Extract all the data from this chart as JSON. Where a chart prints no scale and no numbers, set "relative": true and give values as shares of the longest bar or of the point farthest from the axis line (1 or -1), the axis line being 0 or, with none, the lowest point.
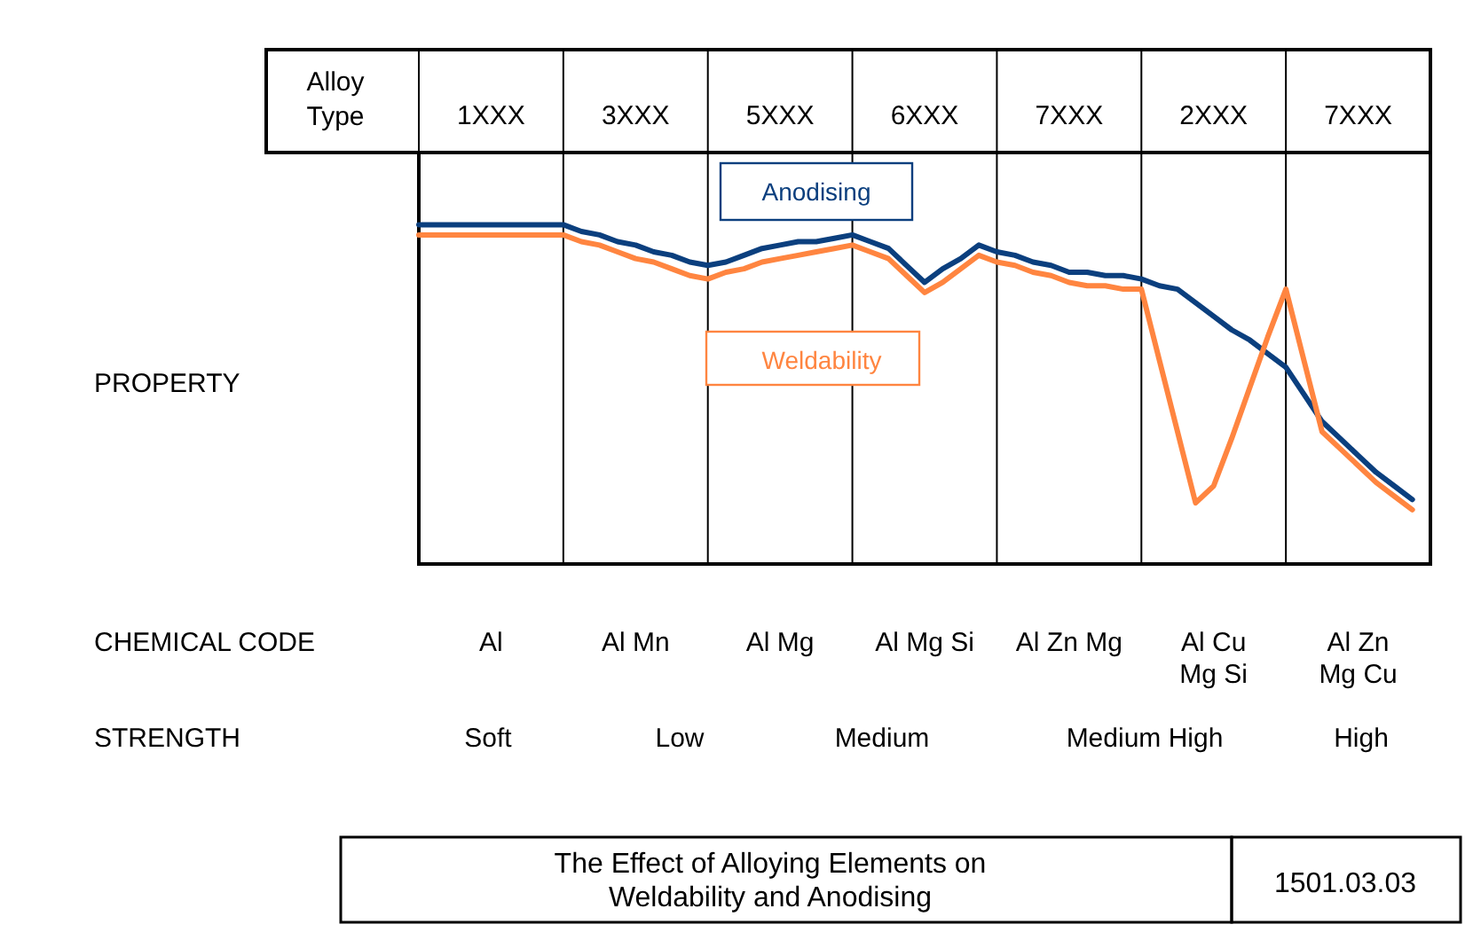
{
  "chart_data": {
    "type": "line",
    "relative": true,
    "title": "The Effect of Alloying Elements on\nWeldability and Anodising",
    "xlabel": "Alloy\nType",
    "categories": [
      null,
      null,
      null,
      null,
      "1XXX",
      null,
      null,
      null,
      null,
      null,
      null,
      null,
      "3XXX",
      null,
      null,
      null,
      null,
      null,
      null,
      null,
      "5XXX",
      null,
      null,
      null,
      null,
      null,
      null,
      null,
      "6XXX",
      null,
      null,
      null,
      null,
      null,
      null,
      null,
      "7XXX",
      null,
      null,
      null,
      null,
      null,
      null,
      null,
      "2XXX",
      null,
      null,
      null,
      null,
      null,
      null,
      null,
      "7XXX",
      null,
      null,
      null,
      null
    ],
    "grid": "x",
    "series": [
      {
        "name": "Anodising",
        "color": "#0b3f7e",
        "values": [
          1.0,
          1.0,
          1.0,
          1.0,
          1.0,
          1.0,
          1.0,
          1.0,
          1.0,
          0.98,
          0.97,
          0.95,
          0.94,
          0.92,
          0.91,
          0.89,
          0.88,
          0.89,
          0.91,
          0.93,
          0.94,
          0.95,
          0.95,
          0.96,
          0.97,
          0.95,
          0.93,
          0.88,
          0.83,
          0.87,
          0.9,
          0.94,
          0.92,
          0.91,
          0.89,
          0.88,
          0.86,
          0.86,
          0.85,
          0.85,
          0.84,
          0.82,
          0.81,
          0.77,
          0.73,
          0.69,
          0.66,
          0.62,
          0.58,
          0.5,
          0.42,
          0.37,
          0.32,
          0.27,
          0.23,
          0.19,
          null
        ]
      },
      {
        "name": "Weldability",
        "color": "#ff8540",
        "values": [
          0.97,
          0.97,
          0.97,
          0.97,
          0.97,
          0.97,
          0.97,
          0.97,
          0.97,
          0.95,
          0.94,
          0.92,
          0.9,
          0.89,
          0.87,
          0.85,
          0.84,
          0.86,
          0.87,
          0.89,
          0.9,
          0.91,
          0.92,
          0.93,
          0.94,
          0.92,
          0.9,
          0.85,
          0.8,
          0.83,
          0.87,
          0.91,
          0.89,
          0.88,
          0.86,
          0.85,
          0.83,
          0.82,
          0.82,
          0.81,
          0.81,
          0.6,
          0.39,
          0.18,
          0.23,
          0.37,
          0.52,
          0.67,
          0.81,
          0.6,
          0.39,
          0.34,
          0.29,
          0.24,
          0.2,
          0.16,
          null
        ]
      }
    ],
    "annotations": [
      "CHEMICAL CODE",
      "Al",
      "Al Mn",
      "Al Mg",
      "Al Mg Si",
      "Al Zn Mg",
      "Al Cu\nMg Si",
      "Al Zn\nMg Cu",
      "STRENGTH",
      "Soft",
      "Low",
      "Medium",
      "Medium High",
      "High",
      "1501.03.03",
      "PROPERTY"
    ]
  }
}
